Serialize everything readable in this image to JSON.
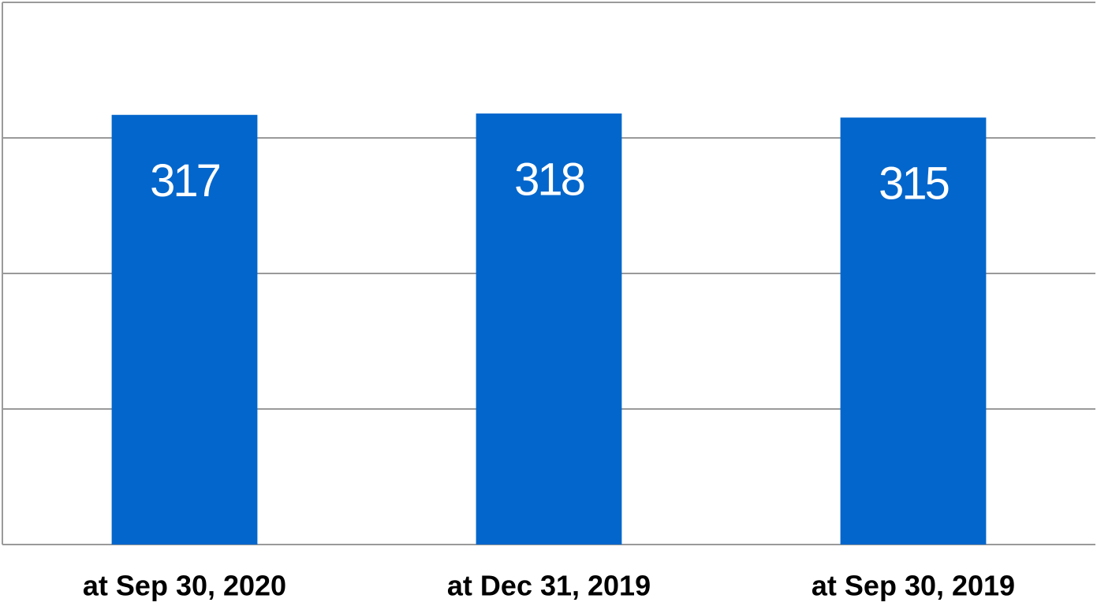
{
  "chart_data": {
    "type": "bar",
    "categories": [
      "at Sep 30, 2020",
      "at Dec 31, 2019",
      "at Sep 30, 2019"
    ],
    "values": [
      317,
      318,
      315
    ],
    "color": "#0366cc",
    "ylim": [
      0,
      400
    ],
    "yticks": [
      0,
      100,
      200,
      300,
      400
    ],
    "grid": true
  }
}
